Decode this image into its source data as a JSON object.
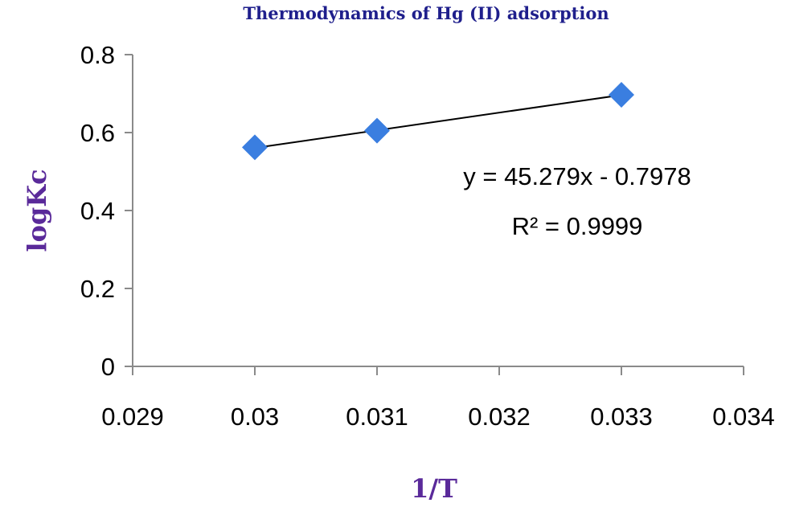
{
  "chart_data": {
    "type": "scatter",
    "title": "Thermodynamics of Hg (II) adsorption",
    "xlabel": "1/T",
    "ylabel": "logKc",
    "xlim": [
      0.029,
      0.034
    ],
    "ylim": [
      0,
      0.8
    ],
    "xticks": [
      "0.029",
      "0.03",
      "0.031",
      "0.032",
      "0.033",
      "0.034"
    ],
    "yticks": [
      "0",
      "0.2",
      "0.4",
      "0.6",
      "0.8"
    ],
    "grid": false,
    "legend": "none",
    "points": [
      {
        "x": 0.03,
        "y": 0.562
      },
      {
        "x": 0.031,
        "y": 0.605
      },
      {
        "x": 0.033,
        "y": 0.697
      }
    ],
    "trendline": {
      "type": "linear",
      "slope": 45.279,
      "intercept": -0.7978,
      "x_range": [
        0.03,
        0.033
      ]
    },
    "annotations": [
      "y = 45.279x - 0.7978",
      "R² = 0.9999"
    ],
    "colors": {
      "marker": "#3a7ee0",
      "title": "#1f1f8c",
      "axis_title": "#5a2a9a",
      "line": "#000000"
    }
  }
}
